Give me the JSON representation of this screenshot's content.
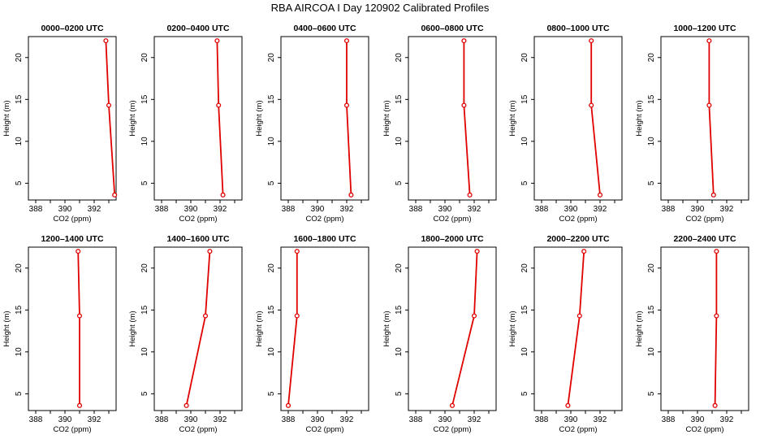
{
  "title": "RBA AIRCOA I  Day 120902  Calibrated Profiles",
  "chart_data": {
    "type": "line",
    "xlabel": "CO2 (ppm)",
    "ylabel": "Height (m)",
    "xlim": [
      387.5,
      393.5
    ],
    "ylim": [
      3,
      22.5
    ],
    "x_ticks": [
      388,
      390,
      392
    ],
    "y_ticks": [
      5,
      10,
      15,
      20
    ],
    "heights": [
      22,
      14.3,
      3.6
    ],
    "line_color": "#e00000",
    "panels": [
      {
        "title": "0000–0200 UTC",
        "co2": [
          392.8,
          393.0,
          393.4
        ]
      },
      {
        "title": "0200–0400 UTC",
        "co2": [
          391.8,
          391.9,
          392.2
        ]
      },
      {
        "title": "0400–0600 UTC",
        "co2": [
          392.0,
          392.0,
          392.3
        ]
      },
      {
        "title": "0600–0800 UTC",
        "co2": [
          391.3,
          391.3,
          391.7
        ]
      },
      {
        "title": "0800–1000 UTC",
        "co2": [
          391.4,
          391.4,
          392.0
        ]
      },
      {
        "title": "1000–1200 UTC",
        "co2": [
          390.8,
          390.8,
          391.1
        ]
      },
      {
        "title": "1200–1400 UTC",
        "co2": [
          390.9,
          391.0,
          391.0
        ]
      },
      {
        "title": "1400–1600 UTC",
        "co2": [
          391.3,
          391.0,
          389.7
        ]
      },
      {
        "title": "1600–1800 UTC",
        "co2": [
          388.6,
          388.6,
          388.0
        ]
      },
      {
        "title": "1800–2000 UTC",
        "co2": [
          392.2,
          392.0,
          390.5
        ]
      },
      {
        "title": "2000–2200 UTC",
        "co2": [
          390.9,
          390.6,
          389.8
        ]
      },
      {
        "title": "2200–2400 UTC",
        "co2": [
          391.3,
          391.3,
          391.2
        ]
      }
    ]
  }
}
